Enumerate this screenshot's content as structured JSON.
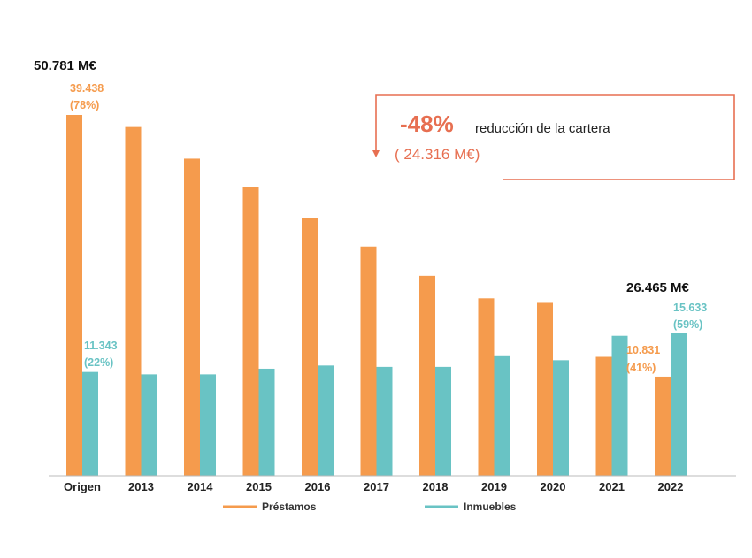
{
  "colors": {
    "prestamos": "#F59B4D",
    "inmuebles": "#69C3C4",
    "callout": "#E76F51",
    "axis": "#BBBBBB"
  },
  "chart_data": {
    "type": "bar",
    "categories": [
      "Origen",
      "2013",
      "2014",
      "2015",
      "2016",
      "2017",
      "2018",
      "2019",
      "2020",
      "2021",
      "2022"
    ],
    "series": [
      {
        "name": "Préstamos",
        "values": [
          39438,
          38120,
          34660,
          31560,
          28200,
          25060,
          21860,
          19400,
          18900,
          13000,
          10831
        ]
      },
      {
        "name": "Inmuebles",
        "values": [
          11343,
          11080,
          11080,
          11700,
          12050,
          11900,
          11900,
          13070,
          12630,
          15300,
          15633
        ]
      }
    ],
    "ylim": [
      0,
      42000
    ],
    "grid": false,
    "legend": "bottom",
    "annotations": {
      "total_start": "50.781 M€",
      "total_end": "26.465 M€",
      "origen_prestamos_value": "39.438",
      "origen_prestamos_pct": "(78%)",
      "origen_inmuebles_value": "11.343",
      "origen_inmuebles_pct": "(22%)",
      "end_prestamos_value": "10.831",
      "end_prestamos_pct": "(41%)",
      "end_inmuebles_value": "15.633",
      "end_inmuebles_pct": "(59%)"
    },
    "callout": {
      "percent": "-48%",
      "text": "reducción de la cartera",
      "amount": "( 24.316 M€)"
    }
  }
}
